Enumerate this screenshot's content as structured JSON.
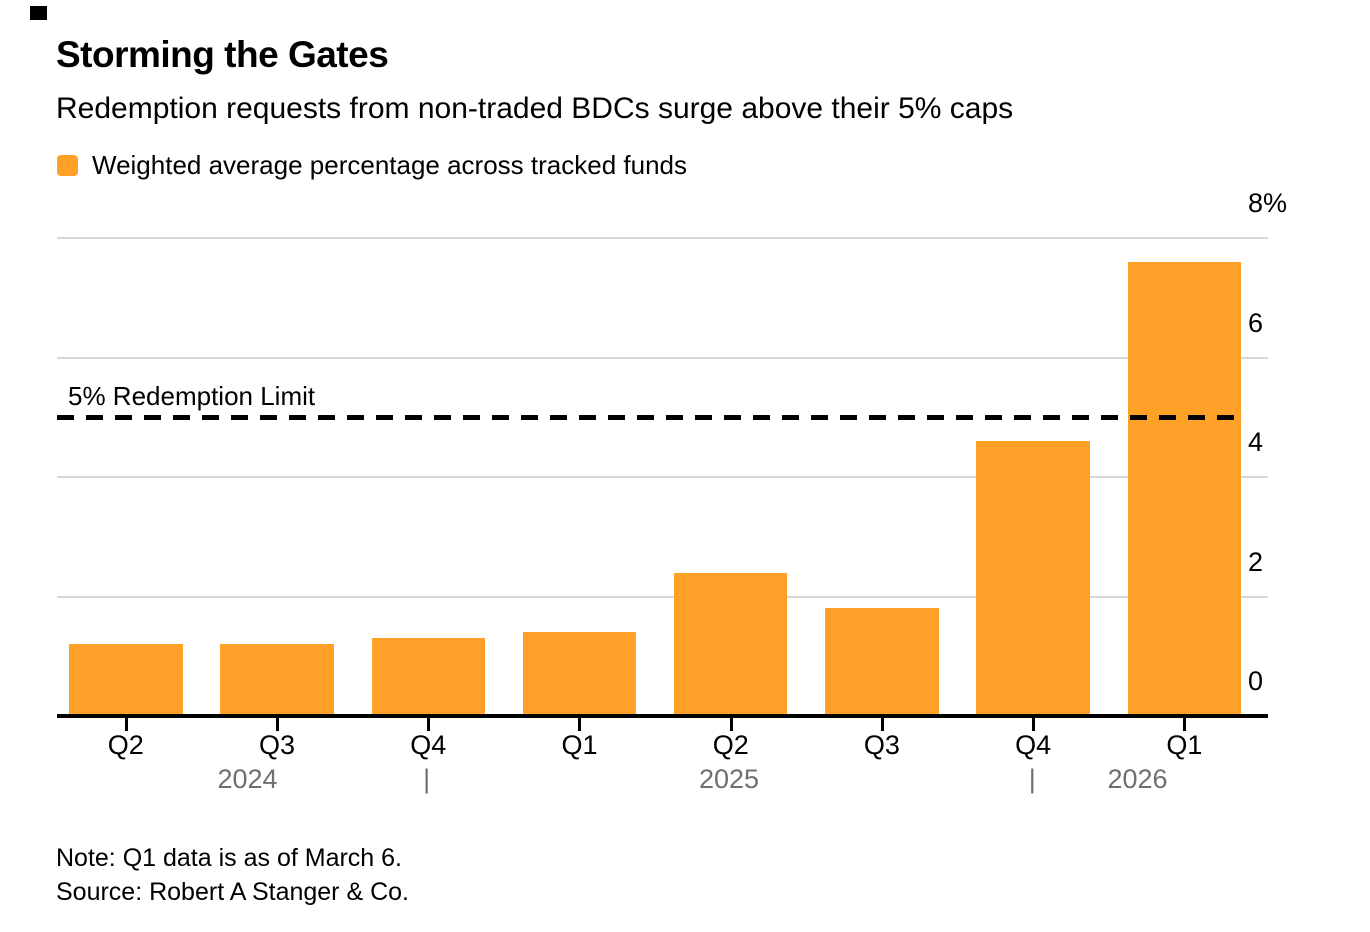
{
  "header": {
    "title": "Storming the Gates",
    "subtitle": "Redemption requests from non-traded BDCs surge above their 5% caps"
  },
  "legend": {
    "label": "Weighted average percentage across tracked funds",
    "swatch_color": "#FFA028"
  },
  "chart_data": {
    "type": "bar",
    "title": "Storming the Gates",
    "subtitle": "Redemption requests from non-traded BDCs surge above their 5% caps",
    "legend_entries": [
      "Weighted average percentage across tracked funds"
    ],
    "legend_position": "top",
    "categories": [
      "Q2",
      "Q3",
      "Q4",
      "Q1",
      "Q2",
      "Q3",
      "Q4",
      "Q1"
    ],
    "category_years": [
      "2024",
      "2024",
      "2024",
      "2025",
      "2025",
      "2025",
      "2025",
      "2026"
    ],
    "values": [
      1.2,
      1.2,
      1.3,
      1.4,
      2.4,
      1.8,
      4.6,
      7.6
    ],
    "unit": "%",
    "xlabel": "",
    "ylabel": "",
    "ylim": [
      0,
      8
    ],
    "yticks": [
      0,
      2,
      4,
      6,
      8
    ],
    "ytick_labels": [
      "0",
      "2",
      "4",
      "6",
      "8%"
    ],
    "grid": true,
    "bar_color": "#FFA028",
    "reference_line": {
      "value": 5,
      "label": "5% Redemption Limit",
      "style": "dashed",
      "color": "#000000"
    },
    "year_axis": {
      "labels": [
        "2024",
        "2025",
        "2026"
      ],
      "separator": "|"
    }
  },
  "footer": {
    "note": "Note: Q1 data is as of March 6.",
    "source": "Source: Robert A Stanger & Co."
  }
}
